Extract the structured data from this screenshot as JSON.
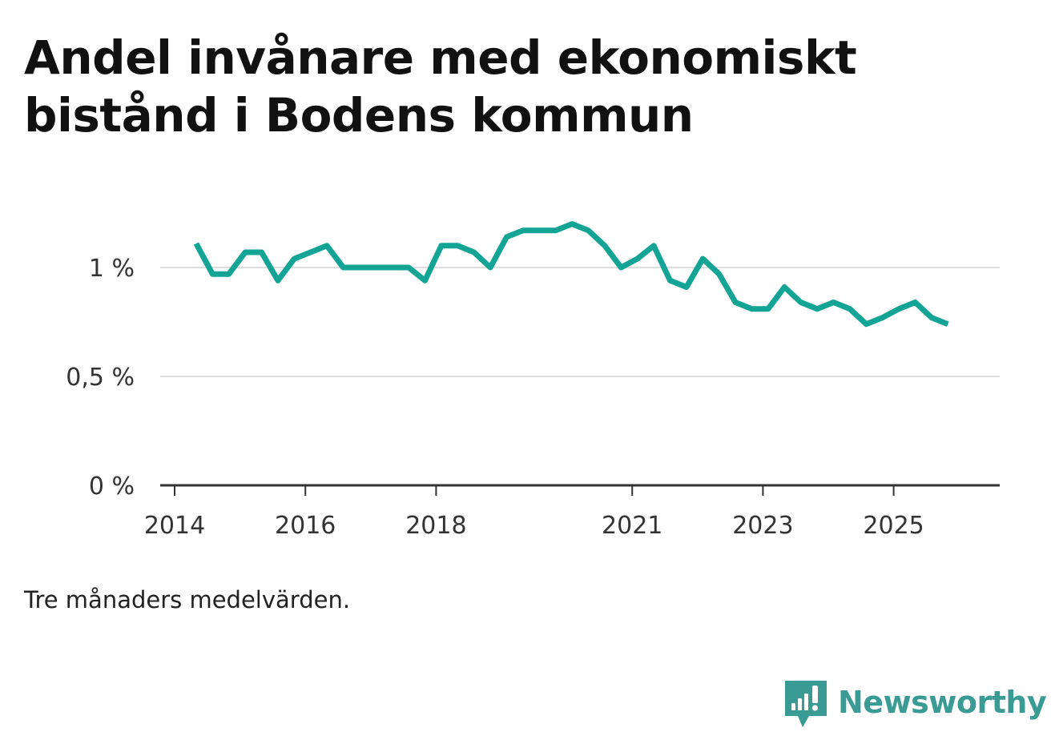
{
  "title": "Andel invånare med ekonomiskt bistånd i Bodens kommun",
  "footnote": "Tre månaders medelvärden.",
  "brand": {
    "name": "Newsworthy",
    "icon": "newsworthy-logo-icon",
    "color": "#3a9a94"
  },
  "colors": {
    "line": "#14a496",
    "grid": "#dddddd",
    "axis": "#333333"
  },
  "chart_data": {
    "type": "line",
    "title": "Andel invånare med ekonomiskt bistånd i Bodens kommun",
    "xlabel": "",
    "ylabel": "",
    "ylim": [
      0,
      1.25
    ],
    "xlim": [
      2014,
      2026.5
    ],
    "y_ticks": [
      {
        "value": 0,
        "label": "0 %"
      },
      {
        "value": 0.5,
        "label": "0,5 %"
      },
      {
        "value": 1,
        "label": "1 %"
      }
    ],
    "x_ticks": [
      {
        "value": 2014,
        "label": "2014"
      },
      {
        "value": 2016,
        "label": "2016"
      },
      {
        "value": 2018,
        "label": "2018"
      },
      {
        "value": 2021,
        "label": "2021"
      },
      {
        "value": 2023,
        "label": "2023"
      },
      {
        "value": 2025,
        "label": "2025"
      }
    ],
    "grid": true,
    "series": [
      {
        "name": "Andel invånare med ekonomiskt bistånd",
        "x": [
          2014.33,
          2014.58,
          2014.83,
          2015.08,
          2015.33,
          2015.58,
          2015.83,
          2016.08,
          2016.33,
          2016.58,
          2016.83,
          2017.08,
          2017.33,
          2017.58,
          2017.83,
          2018.08,
          2018.33,
          2018.58,
          2018.83,
          2019.08,
          2019.33,
          2019.58,
          2019.83,
          2020.08,
          2020.33,
          2020.58,
          2020.83,
          2021.08,
          2021.33,
          2021.58,
          2021.83,
          2022.08,
          2022.33,
          2022.58,
          2022.83,
          2023.08,
          2023.33,
          2023.58,
          2023.83,
          2024.08,
          2024.33,
          2024.58,
          2024.83,
          2025.08,
          2025.33,
          2025.58,
          2025.83
        ],
        "values": [
          1.11,
          0.97,
          0.97,
          1.07,
          1.07,
          0.94,
          1.04,
          1.07,
          1.1,
          1.0,
          1.0,
          1.0,
          1.0,
          1.0,
          0.94,
          1.1,
          1.1,
          1.07,
          1.0,
          1.14,
          1.17,
          1.17,
          1.17,
          1.2,
          1.17,
          1.1,
          1.0,
          1.04,
          1.1,
          0.94,
          0.91,
          1.04,
          0.97,
          0.84,
          0.81,
          0.81,
          0.91,
          0.84,
          0.81,
          0.84,
          0.81,
          0.74,
          0.77,
          0.81,
          0.84,
          0.77,
          0.74
        ]
      }
    ]
  }
}
